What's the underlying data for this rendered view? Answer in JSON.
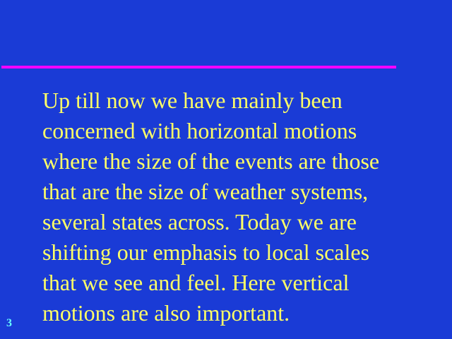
{
  "slide": {
    "lines": [
      "Up till now we have mainly been",
      "concerned with horizontal motions",
      "where the size of the events are those",
      "that are the size of weather systems,",
      "several states across. Today we are",
      "shifting our emphasis to local scales",
      "that we see and feel. Here vertical",
      "motions are also important."
    ],
    "number": "3"
  },
  "colors": {
    "background": "#1a3bd6",
    "rule": "#ff00ff",
    "text": "#ffff66",
    "slide_number": "#66ffff"
  }
}
